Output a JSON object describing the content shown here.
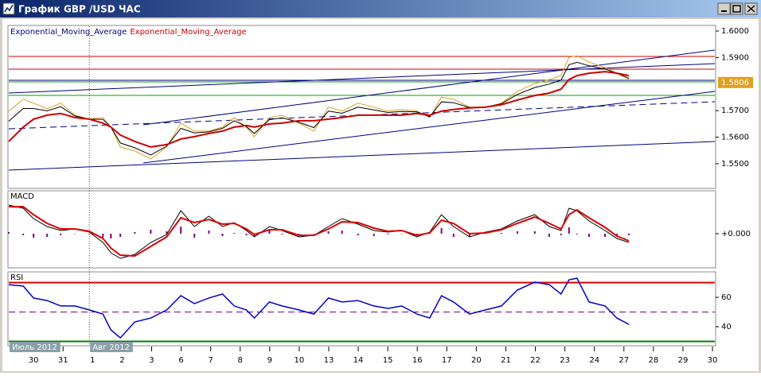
{
  "window": {
    "title": "График GBP /USD ЧАС"
  },
  "chart_data": {
    "type": "line",
    "x": [
      -0.84,
      -0.35,
      0,
      0.46,
      0.92,
      1.4,
      1.89,
      2.35,
      2.62,
      2.94,
      3.43,
      3.97,
      4.51,
      4.99,
      5.45,
      5.94,
      6.4,
      6.8,
      7.21,
      7.48,
      7.99,
      8.42,
      8.99,
      9.5,
      9.99,
      10.45,
      10.99,
      11.53,
      12.01,
      12.47,
      12.99,
      13.42,
      13.82,
      14.23,
      14.77,
      15.31,
      15.85,
      16.39,
      16.98,
      17.47,
      17.87,
      18.14,
      18.41,
      18.82,
      19.36,
      19.76,
      20.17
    ],
    "xlim": [
      -0.84,
      23.08
    ],
    "xticks": [
      {
        "value": 0,
        "label": "30"
      },
      {
        "value": 1,
        "label": "31"
      },
      {
        "value": 2,
        "label": "1"
      },
      {
        "value": 3,
        "label": "2"
      },
      {
        "value": 4,
        "label": "3"
      },
      {
        "value": 5,
        "label": "6"
      },
      {
        "value": 6,
        "label": "7"
      },
      {
        "value": 7,
        "label": "8"
      },
      {
        "value": 8,
        "label": "9"
      },
      {
        "value": 9,
        "label": "10"
      },
      {
        "value": 10,
        "label": "13"
      },
      {
        "value": 11,
        "label": "14"
      },
      {
        "value": 12,
        "label": "15"
      },
      {
        "value": 13,
        "label": "16"
      },
      {
        "value": 14,
        "label": "17"
      },
      {
        "value": 15,
        "label": "20"
      },
      {
        "value": 16,
        "label": "21"
      },
      {
        "value": 17,
        "label": "22"
      },
      {
        "value": 18,
        "label": "23"
      },
      {
        "value": 19,
        "label": "24"
      },
      {
        "value": 20,
        "label": "27"
      },
      {
        "value": 21,
        "label": "28"
      },
      {
        "value": 22,
        "label": "29"
      },
      {
        "value": 23,
        "label": "30"
      }
    ],
    "month_labels": [
      {
        "value": -0.84,
        "label": "Июль 2012"
      },
      {
        "value": 1.89,
        "label": "Авг 2012"
      }
    ],
    "panels": [
      {
        "type": "line",
        "ylim": [
          1.5407,
          1.6021
        ],
        "yticks": [
          {
            "value": 1.6,
            "label": "1.6000"
          },
          {
            "value": 1.59,
            "label": "1.5900"
          },
          {
            "value": 1.57,
            "label": "1.5700"
          },
          {
            "value": 1.56,
            "label": "1.5600"
          },
          {
            "value": 1.55,
            "label": "1.5500"
          }
        ],
        "current_price": 1.5806,
        "series": [
          {
            "color": "#e0a020",
            "values": [
              1.5698,
              1.5743,
              1.5728,
              1.5707,
              1.5728,
              1.5683,
              1.5668,
              1.5674,
              1.5638,
              1.5563,
              1.5548,
              1.5518,
              1.5563,
              1.5653,
              1.5623,
              1.5623,
              1.5638,
              1.5674,
              1.5638,
              1.5602,
              1.5674,
              1.5683,
              1.5653,
              1.5623,
              1.5713,
              1.5698,
              1.5728,
              1.5713,
              1.5698,
              1.5704,
              1.5698,
              1.5674,
              1.5751,
              1.5743,
              1.5713,
              1.5713,
              1.5728,
              1.5772,
              1.5802,
              1.5817,
              1.5832,
              1.5901,
              1.5907,
              1.5883,
              1.5862,
              1.5841,
              1.5817
            ]
          },
          {
            "name": "Exponential_Moving_Average",
            "color": "#000000",
            "label_color": "#000080",
            "values": [
              1.566,
              1.5708,
              1.5708,
              1.5699,
              1.5715,
              1.568,
              1.5668,
              1.5667,
              1.5638,
              1.5578,
              1.556,
              1.5533,
              1.5566,
              1.5633,
              1.5616,
              1.562,
              1.5633,
              1.5662,
              1.564,
              1.5614,
              1.5666,
              1.5673,
              1.5656,
              1.5636,
              1.5698,
              1.569,
              1.5713,
              1.5703,
              1.5693,
              1.5697,
              1.5695,
              1.5677,
              1.5733,
              1.573,
              1.5712,
              1.5713,
              1.5726,
              1.5761,
              1.5787,
              1.58,
              1.5815,
              1.5873,
              1.5882,
              1.5869,
              1.5857,
              1.5841,
              1.5822
            ]
          },
          {
            "name": "Exponential_Moving_Average",
            "color": "#cc0000",
            "label_color": "#cc0000",
            "values": [
              1.5584,
              1.5638,
              1.5668,
              1.5683,
              1.5689,
              1.5674,
              1.5668,
              1.5653,
              1.5638,
              1.5608,
              1.5584,
              1.5563,
              1.5572,
              1.5593,
              1.5602,
              1.5614,
              1.5623,
              1.5638,
              1.5644,
              1.5638,
              1.565,
              1.5653,
              1.5662,
              1.5662,
              1.5668,
              1.5674,
              1.5683,
              1.5683,
              1.5683,
              1.5683,
              1.5689,
              1.5683,
              1.5698,
              1.5704,
              1.571,
              1.5713,
              1.5722,
              1.574,
              1.5757,
              1.5766,
              1.5781,
              1.5817,
              1.5832,
              1.5841,
              1.5847,
              1.5841,
              1.5832
            ]
          }
        ]
      },
      {
        "type": "macd",
        "title": "MACD",
        "ylim": [
          -0.0043,
          0.0054
        ],
        "yticks": [
          {
            "value": 0,
            "label": "+0.000"
          }
        ],
        "series": [
          {
            "kind": "bar",
            "color": "#800080",
            "values": [
              0.0002,
              -0.0002,
              -0.0005,
              -0.0004,
              -0.0002,
              0,
              -0.0001,
              -0.0005,
              -0.0006,
              -0.0004,
              0.0002,
              0.0005,
              0.0003,
              0.0009,
              -0.0005,
              0.0004,
              -0.0003,
              0.0001,
              -0.0002,
              -0.0003,
              0.0004,
              -0.0001,
              -0.0002,
              0,
              0.0003,
              0.0004,
              -0.0002,
              -0.0003,
              -0.0001,
              0,
              -0.0002,
              0.0001,
              0.0007,
              -0.0004,
              -0.0004,
              0.0001,
              0.0001,
              0.0003,
              0.0003,
              -0.0004,
              -0.0002,
              0.0008,
              -0.0001,
              -0.0004,
              -0.0004,
              -0.0003,
              -0.0002
            ]
          },
          {
            "color": "#000000",
            "values": [
              0.0036,
              0.0032,
              0.0019,
              0.0009,
              0.0004,
              0.0006,
              0.0002,
              -0.0011,
              -0.0024,
              -0.0031,
              -0.0026,
              -0.0011,
              -0.0001,
              0.0029,
              0.0009,
              0.0022,
              0.0009,
              0.0014,
              0.0004,
              -0.0004,
              0.0009,
              0.0004,
              -0.0004,
              -0.0002,
              0.0009,
              0.0019,
              0.0012,
              0.0004,
              0.0002,
              0.0004,
              -0.0004,
              0.0002,
              0.0024,
              0.0009,
              -0.0004,
              0.0002,
              0.0006,
              0.0016,
              0.0024,
              0.0009,
              0.0004,
              0.0032,
              0.0029,
              0.0016,
              0.0004,
              -0.0006,
              -0.0011
            ]
          },
          {
            "color": "#dd0000",
            "values": [
              0.0034,
              0.0034,
              0.0024,
              0.0013,
              0.0006,
              0.0006,
              0.0003,
              -0.0006,
              -0.0018,
              -0.0027,
              -0.0028,
              -0.0016,
              -0.0004,
              0.002,
              0.0014,
              0.0018,
              0.0012,
              0.0013,
              0.0006,
              -0.0001,
              0.0005,
              0.0005,
              -0.0002,
              -0.0002,
              0.0006,
              0.0015,
              0.0014,
              0.0007,
              0.0003,
              0.0004,
              -0.0002,
              0.0001,
              0.0017,
              0.0013,
              0,
              0.0001,
              0.0005,
              0.0013,
              0.0021,
              0.0013,
              0.0006,
              0.0024,
              0.003,
              0.002,
              0.0008,
              -0.0003,
              -0.0009
            ]
          }
        ]
      },
      {
        "type": "line",
        "title": "RSI",
        "ylim": [
          27,
          77.3
        ],
        "yticks": [
          60,
          40
        ],
        "levels": [
          {
            "value": 70,
            "color": "#dd0000"
          },
          {
            "value": 50,
            "color": "#800080",
            "dash": true
          },
          {
            "value": 30,
            "color": "#008000"
          }
        ],
        "series": [
          {
            "color": "#0000cc",
            "values": [
              68.6,
              67.6,
              59.5,
              57.8,
              54.1,
              54.1,
              51.4,
              48.6,
              37.8,
              32.4,
              43.2,
              45.9,
              51.4,
              61.1,
              55.7,
              59.5,
              62.2,
              54.1,
              51.4,
              45.9,
              56.8,
              54.1,
              51.4,
              48.6,
              59.5,
              56.8,
              57.8,
              54.1,
              52.4,
              54.1,
              48.6,
              45.9,
              61.1,
              56.8,
              48.6,
              51.4,
              54.1,
              64.9,
              70.3,
              68.6,
              62.2,
              71.9,
              73.0,
              56.8,
              54.1,
              45.9,
              41.6
            ]
          }
        ]
      }
    ]
  }
}
